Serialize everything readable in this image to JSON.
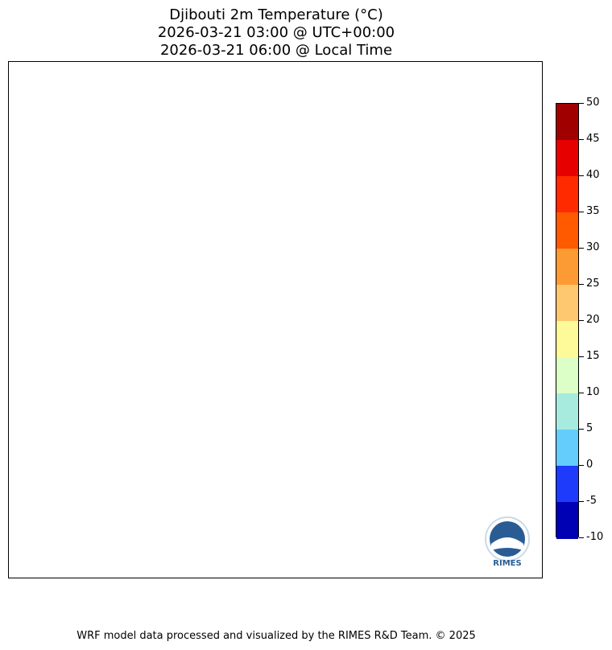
{
  "title": {
    "line1": "Djibouti 2m Temperature (°C)",
    "line2": "2026-03-21 03:00 @ UTC+00:00",
    "line3": "2026-03-21 06:00 @ Local Time"
  },
  "colorbar": {
    "ticks": [
      "50",
      "45",
      "40",
      "35",
      "30",
      "25",
      "20",
      "15",
      "10",
      "5",
      "0",
      "-5",
      "-10"
    ],
    "colors_top_to_bottom": [
      "#a00000",
      "#e60000",
      "#ff2a00",
      "#ff5a00",
      "#fc9a34",
      "#fdc870",
      "#fefa99",
      "#dbffc6",
      "#a7ebdf",
      "#65cdfb",
      "#1e3afa",
      "#0000b4"
    ]
  },
  "logo": {
    "text": "RIMES"
  },
  "footer": "WRF model data processed and visualized by the RIMES R&D Team. © 2025"
}
